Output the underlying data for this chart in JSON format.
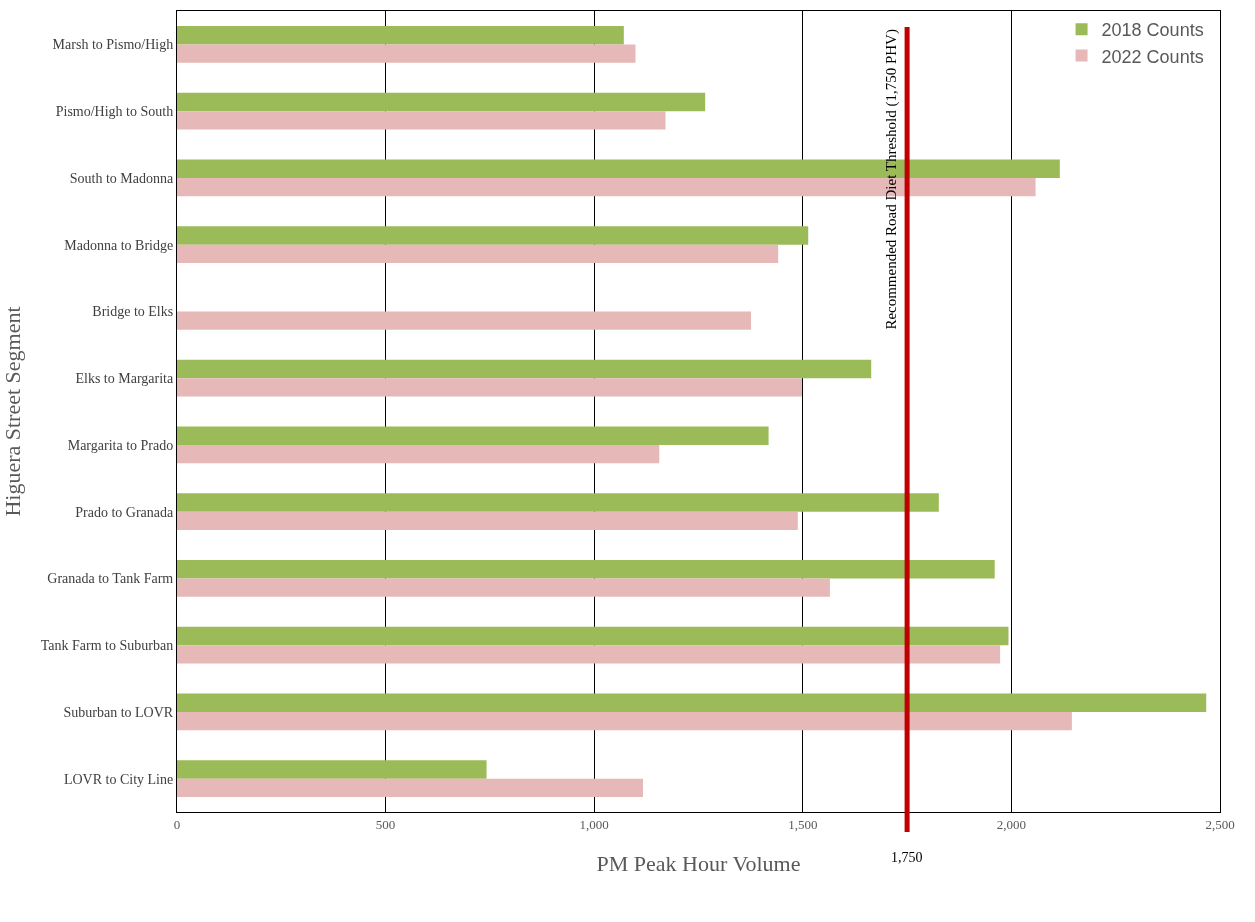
{
  "chart_data": {
    "type": "bar",
    "orientation": "horizontal",
    "xlabel": "PM Peak Hour Volume",
    "ylabel": "Higuera Street Segment",
    "categories": [
      "Marsh to Pismo/High",
      "Pismo/High to South",
      "South to Madonna",
      "Madonna to Bridge",
      "Bridge to Elks",
      "Elks to Margarita",
      "Margarita to Prado",
      "Prado to Granada",
      "Granada to Tank Farm",
      "Tank Farm to Suburban",
      "Suburban to LOVR",
      "LOVR to City Line"
    ],
    "series": [
      {
        "name": "2018 Counts",
        "color": "#9bbb59",
        "values": [
          1071,
          1266,
          2116,
          1513,
          null,
          1664,
          1418,
          1826,
          1960,
          1993,
          2467,
          742
        ]
      },
      {
        "name": "2022 Counts",
        "color": "#e6b9b8",
        "values": [
          1099,
          1171,
          2058,
          1441,
          1376,
          1498,
          1156,
          1488,
          1565,
          1973,
          2145,
          1117
        ]
      }
    ],
    "xlim": [
      0,
      2500
    ],
    "xticks": [
      0,
      500,
      {
        "value": 1000,
        "label": "1,000"
      },
      {
        "value": 1500,
        "label": "1,500"
      },
      {
        "value": 2000,
        "label": "2,000"
      },
      {
        "value": 2500,
        "label": "2,500"
      }
    ],
    "ref_lines": [
      {
        "axis": "x",
        "value": 1750,
        "label": "Recommended Road Diet Threshold (1,750 PHV)",
        "color": "#c00000"
      }
    ],
    "annotations": [
      "1,750"
    ],
    "grid": "x",
    "legend": "top right"
  }
}
